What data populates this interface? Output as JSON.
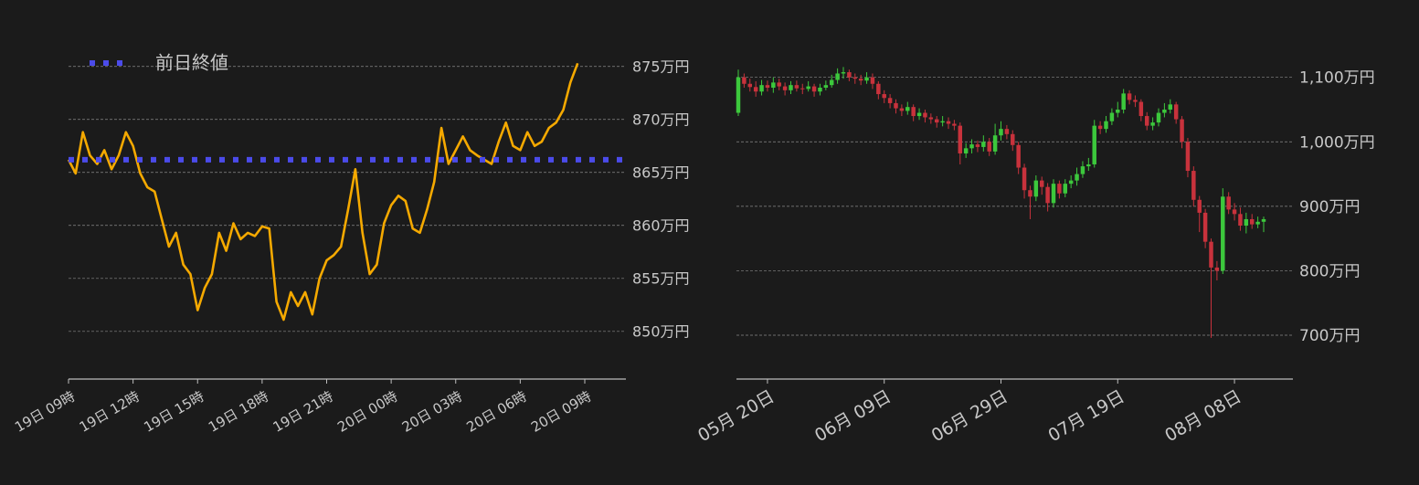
{
  "chart_data": [
    {
      "type": "line",
      "categories": [
        "19日 09時",
        null,
        null,
        null,
        null,
        null,
        null,
        null,
        null,
        "19日 12時",
        null,
        null,
        null,
        null,
        null,
        null,
        null,
        null,
        "19日 15時",
        null,
        null,
        null,
        null,
        null,
        null,
        null,
        null,
        "19日 18時",
        null,
        null,
        null,
        null,
        null,
        null,
        null,
        null,
        "19日 21時",
        null,
        null,
        null,
        null,
        null,
        null,
        null,
        null,
        "20日 00時",
        null,
        null,
        null,
        null,
        null,
        null,
        null,
        null,
        "20日 03時",
        null,
        null,
        null,
        null,
        null,
        null,
        null,
        null,
        "20日 06時",
        null,
        null,
        null,
        null,
        null,
        null,
        null,
        null,
        "20日 09時"
      ],
      "series": [
        {
          "color": "#f5a900",
          "values": [
            866.2,
            864.9,
            868.8,
            866.6,
            865.8,
            867.1,
            865.3,
            866.6,
            868.8,
            867.5,
            864.9,
            863.6,
            863.2,
            860.6,
            858,
            859.3,
            856.3,
            855.4,
            852,
            854.1,
            855.4,
            859.3,
            857.6,
            860.2,
            858.7,
            859.3,
            859,
            859.9,
            859.7,
            852.8,
            851.1,
            853.7,
            852.4,
            853.7,
            851.6,
            855,
            856.7,
            857.2,
            858,
            861.5,
            865.3,
            859.3,
            855.4,
            856.3,
            860.2,
            861.9,
            862.8,
            862.3,
            859.7,
            859.3,
            861.5,
            864.1,
            869.2,
            865.8,
            867.1,
            868.4,
            867.1,
            866.6,
            866.2,
            865.8,
            867.9,
            869.7,
            867.5,
            867.1,
            868.8,
            867.5,
            867.9,
            869.2,
            869.7,
            870.9,
            873.5,
            875.3,
            null
          ]
        },
        {
          "name": "前日終値",
          "color": "#4b4bea",
          "style": "dotted",
          "value": 866.2
        }
      ],
      "ylim": [
        845.5,
        876.1
      ],
      "yticks": [
        {
          "value": 850,
          "label": "850万円"
        },
        {
          "value": 855,
          "label": "855万円"
        },
        {
          "value": 860,
          "label": "860万円"
        },
        {
          "value": 865,
          "label": "865万円"
        },
        {
          "value": 870,
          "label": "870万円"
        },
        {
          "value": 875,
          "label": "875万円"
        }
      ],
      "grid": true,
      "legend": "top-left"
    },
    {
      "type": "candlestick",
      "categories": [
        null,
        null,
        null,
        null,
        null,
        "05月 20日",
        null,
        null,
        null,
        null,
        null,
        null,
        null,
        null,
        null,
        null,
        null,
        null,
        null,
        null,
        null,
        null,
        null,
        null,
        null,
        "06月 09日",
        null,
        null,
        null,
        null,
        null,
        null,
        null,
        null,
        null,
        null,
        null,
        null,
        null,
        null,
        null,
        null,
        null,
        null,
        null,
        "06月 29日",
        null,
        null,
        null,
        null,
        null,
        null,
        null,
        null,
        null,
        null,
        null,
        null,
        null,
        null,
        null,
        null,
        null,
        null,
        null,
        "07月 19日",
        null,
        null,
        null,
        null,
        null,
        null,
        null,
        null,
        null,
        null,
        null,
        null,
        null,
        null,
        null,
        null,
        null,
        null,
        null,
        "08月 08日",
        null,
        null,
        null,
        null,
        null
      ],
      "open": [
        1045,
        1100,
        1090,
        1085,
        1078,
        1088,
        1084,
        1092,
        1086,
        1080,
        1088,
        1083,
        1082,
        1086,
        1078,
        1084,
        1088,
        1096,
        1106,
        1108,
        1100,
        1098,
        1095,
        1100,
        1090,
        1074,
        1068,
        1060,
        1052,
        1048,
        1054,
        1040,
        1045,
        1038,
        1035,
        1030,
        1032,
        1028,
        1025,
        982,
        990,
        996,
        992,
        1000,
        985,
        1010,
        1020,
        1012,
        995,
        960,
        925,
        915,
        940,
        930,
        905,
        935,
        920,
        935,
        940,
        950,
        962,
        965,
        1025,
        1020,
        1032,
        1045,
        1050,
        1075,
        1065,
        1062,
        1040,
        1025,
        1030,
        1045,
        1050,
        1058,
        1035,
        1000,
        955,
        910,
        890,
        845,
        805,
        800,
        915,
        895,
        888,
        870,
        880,
        872,
        876
      ],
      "high": [
        1112,
        1106,
        1098,
        1094,
        1096,
        1095,
        1100,
        1098,
        1092,
        1094,
        1095,
        1090,
        1094,
        1090,
        1090,
        1095,
        1104,
        1114,
        1116,
        1112,
        1106,
        1104,
        1108,
        1106,
        1094,
        1080,
        1074,
        1066,
        1058,
        1062,
        1058,
        1052,
        1050,
        1044,
        1040,
        1040,
        1038,
        1034,
        1030,
        998,
        1004,
        1002,
        1010,
        1006,
        1028,
        1032,
        1026,
        1018,
        1000,
        966,
        932,
        948,
        946,
        936,
        942,
        940,
        942,
        948,
        960,
        970,
        975,
        1034,
        1032,
        1040,
        1052,
        1062,
        1082,
        1080,
        1072,
        1066,
        1046,
        1038,
        1052,
        1060,
        1066,
        1062,
        1040,
        1006,
        962,
        916,
        896,
        850,
        815,
        928,
        922,
        905,
        898,
        890,
        888,
        884,
        884
      ],
      "low": [
        1040,
        1084,
        1078,
        1070,
        1072,
        1078,
        1076,
        1080,
        1072,
        1074,
        1078,
        1074,
        1078,
        1070,
        1072,
        1080,
        1084,
        1090,
        1098,
        1094,
        1090,
        1088,
        1090,
        1082,
        1066,
        1060,
        1052,
        1044,
        1040,
        1042,
        1032,
        1034,
        1030,
        1028,
        1022,
        1024,
        1020,
        1018,
        965,
        975,
        982,
        984,
        985,
        978,
        980,
        1002,
        1004,
        986,
        950,
        912,
        880,
        908,
        918,
        892,
        898,
        912,
        914,
        928,
        932,
        944,
        955,
        960,
        1012,
        1014,
        1026,
        1038,
        1044,
        1058,
        1054,
        1032,
        1018,
        1018,
        1024,
        1038,
        1044,
        1028,
        990,
        945,
        900,
        860,
        835,
        696,
        785,
        795,
        888,
        878,
        862,
        858,
        865,
        866,
        860
      ],
      "close": [
        1100,
        1090,
        1085,
        1078,
        1088,
        1084,
        1092,
        1086,
        1080,
        1088,
        1083,
        1082,
        1086,
        1078,
        1084,
        1088,
        1096,
        1106,
        1108,
        1100,
        1098,
        1095,
        1100,
        1090,
        1074,
        1068,
        1060,
        1052,
        1048,
        1054,
        1040,
        1045,
        1038,
        1035,
        1030,
        1032,
        1028,
        1025,
        982,
        990,
        996,
        992,
        1000,
        985,
        1010,
        1020,
        1012,
        995,
        960,
        925,
        915,
        940,
        930,
        905,
        935,
        920,
        935,
        940,
        950,
        962,
        965,
        1025,
        1020,
        1032,
        1045,
        1050,
        1075,
        1065,
        1062,
        1040,
        1025,
        1030,
        1045,
        1050,
        1058,
        1035,
        1000,
        955,
        910,
        890,
        845,
        805,
        800,
        915,
        895,
        888,
        870,
        880,
        872,
        876,
        880
      ],
      "up_color": "#3cc83c",
      "down_color": "#c8323c",
      "ylim": [
        632,
        1135
      ],
      "yticks": [
        {
          "value": 700,
          "label": "700万円"
        },
        {
          "value": 800,
          "label": "800万円"
        },
        {
          "value": 900,
          "label": "900万円"
        },
        {
          "value": 1000,
          "label": "1,000万円"
        },
        {
          "value": 1100,
          "label": "1,100万円"
        }
      ],
      "grid": true
    }
  ]
}
